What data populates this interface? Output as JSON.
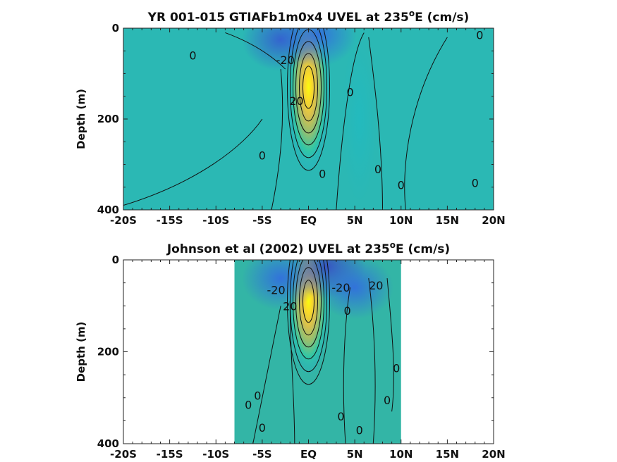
{
  "chart_data": [
    {
      "type": "heatmap",
      "title_parts": [
        "YR 001-015 GTIAFb1m0x4 UVEL at 235",
        "o",
        "E (cm/s)"
      ],
      "ylabel": "Depth (m)",
      "xlim": [
        -20,
        20
      ],
      "ylim": [
        0,
        400
      ],
      "x_tick_values": [
        -20,
        -15,
        -10,
        -5,
        0,
        5,
        10,
        15,
        20
      ],
      "x_tick_labels": [
        "-20S",
        "-15S",
        "-10S",
        "-5S",
        "EQ",
        "5N",
        "10N",
        "15N",
        "20N"
      ],
      "y_tick_values": [
        0,
        200,
        400
      ],
      "y_tick_labels": [
        "0",
        "200",
        "400"
      ],
      "data_extent": {
        "xmin": -20,
        "xmax": 20
      },
      "colormap": [
        "#3d26a8",
        "#2e87f7",
        "#1fc8b0",
        "#a5be66",
        "#fcbf3c",
        "#f9fb0e"
      ],
      "background_color": "#2bb8b4",
      "features": [
        {
          "kind": "jet",
          "x": 0,
          "depth": 130,
          "value": 100
        },
        {
          "kind": "westward",
          "x": -3,
          "depth": 25,
          "value": -25
        },
        {
          "kind": "westward",
          "x": 1,
          "depth": 15,
          "value": -20
        },
        {
          "kind": "eastward",
          "x": 5.5,
          "depth": 200,
          "value": 10
        }
      ],
      "contour_labels": [
        {
          "text": "0",
          "x": -12.5,
          "depth": 60
        },
        {
          "text": "-20",
          "x": -2.5,
          "depth": 70
        },
        {
          "text": "0",
          "x": 4.5,
          "depth": 140
        },
        {
          "text": "0",
          "x": -5,
          "depth": 280
        },
        {
          "text": "0",
          "x": 1.5,
          "depth": 320
        },
        {
          "text": "0",
          "x": 7.5,
          "depth": 310
        },
        {
          "text": "0",
          "x": 10,
          "depth": 345
        },
        {
          "text": "0",
          "x": 18,
          "depth": 340
        },
        {
          "text": "0",
          "x": 18.5,
          "depth": 15
        },
        {
          "text": "20",
          "x": -1.3,
          "depth": 160
        }
      ]
    },
    {
      "type": "heatmap",
      "title_parts": [
        "Johnson et al (2002) UVEL at 235",
        "o",
        "E (cm/s)"
      ],
      "ylabel": "Depth (m)",
      "xlim": [
        -20,
        20
      ],
      "ylim": [
        0,
        400
      ],
      "x_tick_values": [
        -20,
        -15,
        -10,
        -5,
        0,
        5,
        10,
        15,
        20
      ],
      "x_tick_labels": [
        "-20S",
        "-15S",
        "-10S",
        "-5S",
        "EQ",
        "5N",
        "10N",
        "15N",
        "20N"
      ],
      "y_tick_values": [
        0,
        200,
        400
      ],
      "y_tick_labels": [
        "0",
        "200",
        "400"
      ],
      "data_extent": {
        "xmin": -8,
        "xmax": 10
      },
      "colormap": [
        "#3d26a8",
        "#2e87f7",
        "#1fc8b0",
        "#a5be66",
        "#fcbf3c",
        "#f9fb0e"
      ],
      "background_color": "#33b5a6",
      "features": [
        {
          "kind": "jet",
          "x": 0,
          "depth": 90,
          "value": 100
        },
        {
          "kind": "westward",
          "x": 2,
          "depth": 15,
          "value": -30
        },
        {
          "kind": "westward",
          "x": -3,
          "depth": 40,
          "value": -20
        },
        {
          "kind": "westward",
          "x": 5,
          "depth": 60,
          "value": -20
        }
      ],
      "contour_labels": [
        {
          "text": "-20",
          "x": -3.5,
          "depth": 65
        },
        {
          "text": "-20",
          "x": 3.5,
          "depth": 60
        },
        {
          "text": "20",
          "x": 7.3,
          "depth": 55
        },
        {
          "text": "0",
          "x": 4.2,
          "depth": 110
        },
        {
          "text": "0",
          "x": 9.5,
          "depth": 235
        },
        {
          "text": "0",
          "x": -6.5,
          "depth": 315
        },
        {
          "text": "0",
          "x": -5.5,
          "depth": 295
        },
        {
          "text": "0",
          "x": 3.5,
          "depth": 340
        },
        {
          "text": "0",
          "x": 8.5,
          "depth": 305
        },
        {
          "text": "0",
          "x": -5,
          "depth": 365
        },
        {
          "text": "0",
          "x": 5.5,
          "depth": 370
        },
        {
          "text": "20",
          "x": -2,
          "depth": 100
        }
      ]
    }
  ]
}
